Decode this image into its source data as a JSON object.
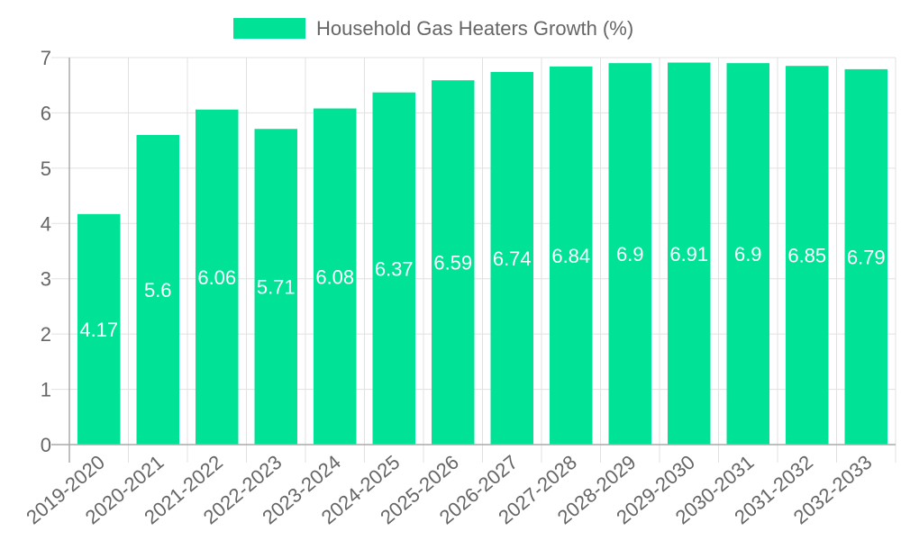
{
  "chart_data": {
    "type": "bar",
    "title": "",
    "legend": [
      {
        "label": "Household Gas Heaters Growth (%)",
        "color": "#00e396"
      }
    ],
    "legend_position": "top",
    "categories": [
      "2019-2020",
      "2020-2021",
      "2021-2022",
      "2022-2023",
      "2023-2024",
      "2024-2025",
      "2025-2026",
      "2026-2027",
      "2027-2028",
      "2028-2029",
      "2029-2030",
      "2030-2031",
      "2031-2032",
      "2032-2033"
    ],
    "series": [
      {
        "name": "Household Gas Heaters Growth (%)",
        "color": "#00e396",
        "values": [
          4.17,
          5.6,
          6.06,
          5.71,
          6.08,
          6.37,
          6.59,
          6.74,
          6.84,
          6.9,
          6.91,
          6.9,
          6.85,
          6.79
        ]
      }
    ],
    "data_labels": [
      "4.17",
      "5.6",
      "6.06",
      "5.71",
      "6.08",
      "6.37",
      "6.59",
      "6.74",
      "6.84",
      "6.9",
      "6.91",
      "6.9",
      "6.85",
      "6.79"
    ],
    "xlabel": "",
    "ylabel": "",
    "ylim": [
      0,
      7
    ],
    "yticks": [
      0,
      1,
      2,
      3,
      4,
      5,
      6,
      7
    ],
    "grid": true
  }
}
